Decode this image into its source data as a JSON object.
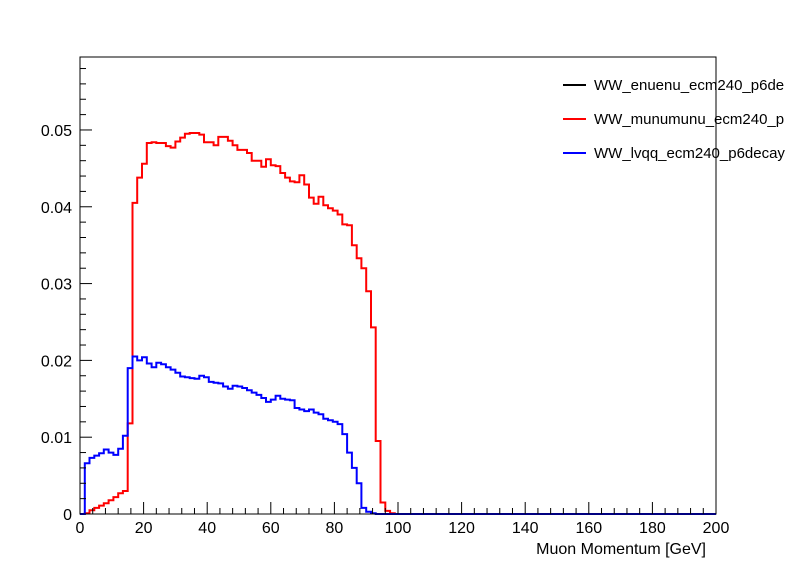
{
  "chart_data": {
    "type": "line",
    "style": "step-histogram",
    "title": "",
    "xlabel": "Muon Momentum [GeV]",
    "ylabel": "",
    "xlim": [
      0,
      200
    ],
    "ylim": [
      0,
      0.0595
    ],
    "x_ticks": [
      0,
      20,
      40,
      60,
      80,
      100,
      120,
      140,
      160,
      180,
      200
    ],
    "y_ticks": [
      0,
      0.01,
      0.02,
      0.03,
      0.04,
      0.05
    ],
    "y_tick_labels": [
      "0",
      "0.01",
      "0.02",
      "0.03",
      "0.04",
      "0.05"
    ],
    "grid": false,
    "legend_position": "top-right",
    "bin_width": 1.5,
    "x_start": 0,
    "series": [
      {
        "name": "WW_enuenu_ecm240_p6de",
        "color": "#000000",
        "values": []
      },
      {
        "name": "WW_munumunu_ecm240_p",
        "color": "#ff0000",
        "values": [
          0,
          0.0001,
          0.0005,
          0.0008,
          0.0011,
          0.0014,
          0.0018,
          0.0022,
          0.0027,
          0.003,
          0.0118,
          0.0405,
          0.0438,
          0.0456,
          0.0483,
          0.0484,
          0.0483,
          0.0483,
          0.0479,
          0.0477,
          0.0485,
          0.049,
          0.0495,
          0.0496,
          0.0496,
          0.0494,
          0.0484,
          0.0484,
          0.048,
          0.0491,
          0.0491,
          0.0486,
          0.048,
          0.0474,
          0.0474,
          0.047,
          0.046,
          0.046,
          0.0452,
          0.0462,
          0.0454,
          0.0453,
          0.0444,
          0.0438,
          0.0433,
          0.0432,
          0.0441,
          0.0429,
          0.0412,
          0.0404,
          0.0413,
          0.0402,
          0.0398,
          0.0395,
          0.039,
          0.0377,
          0.0376,
          0.035,
          0.0333,
          0.032,
          0.029,
          0.0243,
          0.0095,
          0.0015,
          0.0004,
          0.0001,
          0,
          0,
          0,
          0,
          0,
          0,
          0,
          0,
          0,
          0,
          0,
          0,
          0,
          0,
          0,
          0,
          0,
          0,
          0,
          0,
          0,
          0,
          0,
          0,
          0,
          0,
          0,
          0,
          0,
          0,
          0,
          0,
          0,
          0,
          0,
          0,
          0,
          0,
          0,
          0,
          0,
          0,
          0,
          0,
          0,
          0,
          0,
          0,
          0,
          0,
          0,
          0,
          0,
          0,
          0,
          0,
          0,
          0,
          0,
          0,
          0,
          0,
          0,
          0,
          0,
          0,
          0,
          0
        ]
      },
      {
        "name": "WW_lvqq_ecm240_p6decay",
        "color": "#0000ff",
        "values": [
          0,
          0.0066,
          0.0073,
          0.0076,
          0.0079,
          0.0084,
          0.008,
          0.0077,
          0.0085,
          0.0102,
          0.019,
          0.0205,
          0.02,
          0.0204,
          0.0196,
          0.0191,
          0.0197,
          0.0195,
          0.0191,
          0.0188,
          0.0184,
          0.0179,
          0.0178,
          0.0177,
          0.0176,
          0.018,
          0.0178,
          0.0172,
          0.0171,
          0.017,
          0.0166,
          0.0163,
          0.0167,
          0.0166,
          0.0164,
          0.0161,
          0.0158,
          0.0155,
          0.0151,
          0.0146,
          0.0149,
          0.0154,
          0.015,
          0.0149,
          0.0148,
          0.0138,
          0.0136,
          0.0134,
          0.0136,
          0.0132,
          0.013,
          0.0124,
          0.0122,
          0.012,
          0.0117,
          0.0104,
          0.008,
          0.006,
          0.004,
          0.0008,
          0.0003,
          0.0001,
          0,
          0,
          0,
          0,
          0,
          0,
          0,
          0,
          0,
          0,
          0,
          0,
          0,
          0,
          0,
          0,
          0,
          0,
          0,
          0,
          0,
          0,
          0,
          0,
          0,
          0,
          0,
          0,
          0,
          0,
          0,
          0,
          0,
          0,
          0,
          0,
          0,
          0,
          0,
          0,
          0,
          0,
          0,
          0,
          0,
          0,
          0,
          0,
          0,
          0,
          0,
          0,
          0,
          0,
          0,
          0,
          0,
          0,
          0,
          0,
          0,
          0,
          0,
          0,
          0,
          0,
          0,
          0,
          0,
          0,
          0,
          0
        ]
      }
    ]
  }
}
